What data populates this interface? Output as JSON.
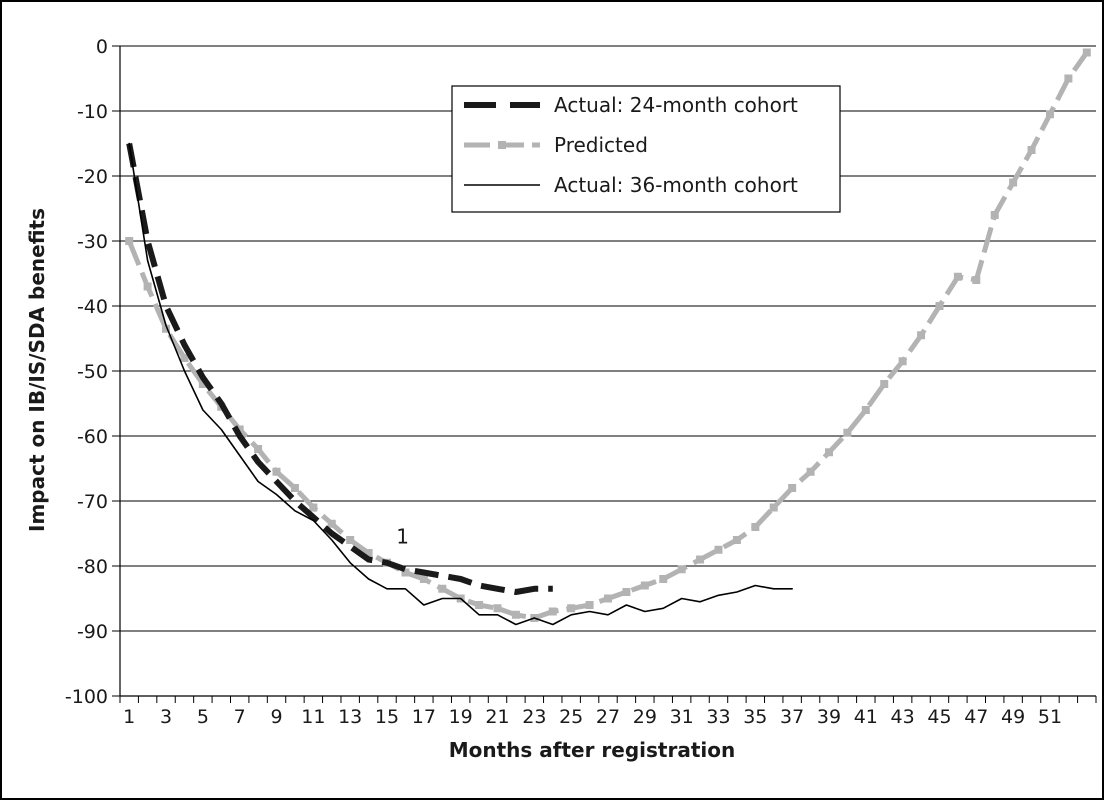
{
  "chart_data": {
    "type": "line",
    "title": "",
    "xlabel": "Months after registration",
    "ylabel": "Impact on IB/IS/SDA benefits",
    "ylim": [
      -100,
      0
    ],
    "yticks": [
      "0",
      "-10",
      "-20",
      "-30",
      "-40",
      "-50",
      "-60",
      "-70",
      "-80",
      "-90",
      "-100"
    ],
    "xlim": [
      0.5,
      53.5
    ],
    "xticks": [
      "1",
      "3",
      "5",
      "7",
      "9",
      "11",
      "13",
      "15",
      "17",
      "19",
      "21",
      "23",
      "25",
      "27",
      "29",
      "31",
      "33",
      "35",
      "37",
      "39",
      "41",
      "43",
      "45",
      "47",
      "49",
      "51"
    ],
    "grid": "horizontal",
    "legend_position": "top-center",
    "annotation": {
      "text": "1",
      "x": 15.5,
      "y": -76.5
    },
    "series": [
      {
        "name": "Actual: 24-month cohort",
        "color": "#1a1a1a",
        "style": "dashed-heavy",
        "x": [
          1,
          2,
          3,
          4,
          5,
          6,
          7,
          8,
          9,
          10,
          11,
          12,
          13,
          14,
          15,
          16,
          17,
          18,
          19,
          20,
          21,
          22,
          23,
          24
        ],
        "y": [
          -15,
          -30,
          -40,
          -46,
          -51,
          -55,
          -60,
          -64,
          -67,
          -70,
          -72.5,
          -75,
          -77,
          -79,
          -79.5,
          -80.5,
          -81,
          -81.5,
          -82,
          -83,
          -83.5,
          -84,
          -83.5,
          -83.5
        ]
      },
      {
        "name": "Predicted",
        "color": "#b3b3b3",
        "style": "dashed-square-markers",
        "x": [
          1,
          2,
          3,
          4,
          5,
          6,
          7,
          8,
          9,
          10,
          11,
          12,
          13,
          14,
          15,
          16,
          17,
          18,
          19,
          20,
          21,
          22,
          23,
          24,
          25,
          26,
          27,
          28,
          29,
          30,
          31,
          32,
          33,
          34,
          35,
          36,
          37,
          38,
          39,
          40,
          41,
          42,
          43,
          44,
          45,
          46,
          47,
          48,
          49,
          50,
          51,
          52,
          53
        ],
        "y": [
          -30,
          -37,
          -43.5,
          -48,
          -52,
          -55.5,
          -59,
          -62,
          -65.5,
          -68,
          -71,
          -73.5,
          -76,
          -78,
          -79.5,
          -81,
          -82,
          -83.5,
          -85,
          -86,
          -86.5,
          -87.5,
          -88,
          -87,
          -86.5,
          -86,
          -85,
          -84,
          -83,
          -82,
          -80.5,
          -79,
          -77.5,
          -76,
          -74,
          -71,
          -68,
          -65.5,
          -62.5,
          -59.5,
          -56,
          -52,
          -48.5,
          -44.5,
          -40,
          -35.5,
          -36,
          -26,
          -21,
          -16,
          -10.5,
          -5,
          -1
        ]
      },
      {
        "name": "Actual: 36-month cohort",
        "color": "#000000",
        "style": "solid-thin",
        "x": [
          1,
          2,
          3,
          4,
          5,
          6,
          7,
          8,
          9,
          10,
          11,
          12,
          13,
          14,
          15,
          16,
          17,
          18,
          19,
          20,
          21,
          22,
          23,
          24,
          25,
          26,
          27,
          28,
          29,
          30,
          31,
          32,
          33,
          34,
          35,
          36,
          37
        ],
        "y": [
          -15,
          -33,
          -43,
          -50,
          -56,
          -59,
          -63,
          -67,
          -69,
          -71.5,
          -73,
          -76,
          -79.5,
          -82,
          -83.5,
          -83.5,
          -86,
          -85,
          -85,
          -87.5,
          -87.5,
          -89,
          -88,
          -89,
          -87.5,
          -87,
          -87.5,
          -86,
          -87,
          -86.5,
          -85,
          -85.5,
          -84.5,
          -84,
          -83,
          -83.5,
          -83.5
        ]
      }
    ]
  }
}
